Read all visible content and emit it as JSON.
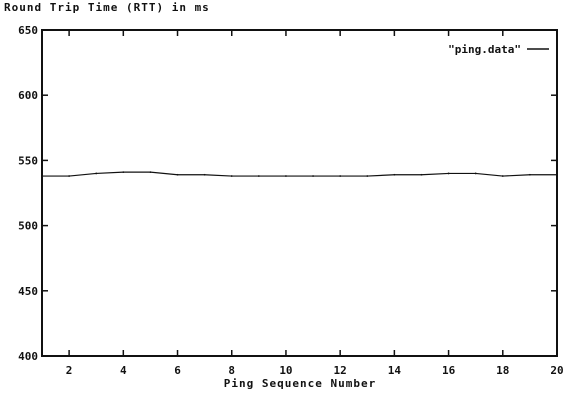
{
  "chart_data": {
    "type": "line",
    "title": "Round Trip Time (RTT) in ms",
    "xlabel": "Ping Sequence Number",
    "ylabel": "",
    "xlim": [
      1,
      20
    ],
    "ylim": [
      400,
      650
    ],
    "x_ticks": [
      2,
      4,
      6,
      8,
      10,
      12,
      14,
      16,
      18,
      20
    ],
    "y_ticks": [
      400,
      450,
      500,
      550,
      600,
      650
    ],
    "grid": false,
    "legend_position": "top-right",
    "series": [
      {
        "name": "\"ping.data\"",
        "color": "#111111",
        "x": [
          1,
          2,
          3,
          4,
          5,
          6,
          7,
          8,
          9,
          10,
          11,
          12,
          13,
          14,
          15,
          16,
          17,
          18,
          19,
          20
        ],
        "y": [
          538,
          538,
          540,
          541,
          541,
          539,
          539,
          538,
          538,
          538,
          538,
          538,
          538,
          539,
          539,
          540,
          540,
          538,
          539,
          539
        ]
      }
    ]
  }
}
